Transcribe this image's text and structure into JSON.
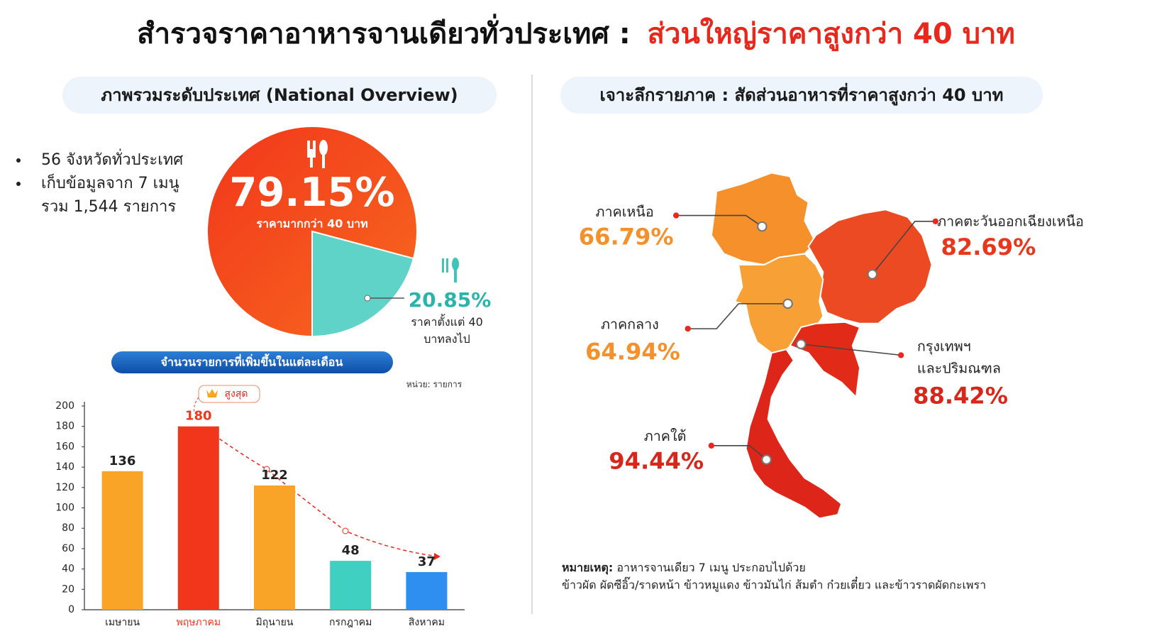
{
  "title": {
    "main": "สำรวจราคาอาหารจานเดียวทั่วประเทศ :",
    "highlight": "ส่วนใหญ่ราคาสูงกว่า 40 บาท"
  },
  "national": {
    "heading": "ภาพรวมระดับประเทศ (National Overview)",
    "bullets": [
      [
        "56 จังหวัดทั่วประเทศ"
      ],
      [
        "เก็บข้อมูลจาก 7 เมนู",
        "รวม 1,544 รายการ"
      ]
    ]
  },
  "chart_data": [
    {
      "type": "pie",
      "categories": [
        "ราคามากกว่า 40 บาท",
        "ราคาตั้งแต่ 40 บาทลงไป"
      ],
      "values": [
        79.15,
        20.85
      ],
      "value_labels": [
        "79.15%",
        "20.85%"
      ],
      "colors": [
        "#f23a1e",
        "#5fd3c8"
      ]
    },
    {
      "type": "bar",
      "title": "จำนวนรายการที่เพิ่มขึ้นในแต่ละเดือน",
      "unit_note": "หน่วย: รายการ",
      "badge": "สูงสุด",
      "categories": [
        "เมษายน",
        "พฤษภาคม",
        "มิถุนายน",
        "กรกฎาคม",
        "สิงหาคม"
      ],
      "values": [
        136,
        180,
        122,
        48,
        37
      ],
      "colors": [
        "#f9a327",
        "#f2361c",
        "#f9a327",
        "#3fd0c2",
        "#2f8ff0"
      ],
      "ylim": [
        0,
        200
      ],
      "yticks": [
        0,
        20,
        40,
        60,
        80,
        100,
        120,
        140,
        160,
        180,
        200
      ]
    }
  ],
  "regional": {
    "heading": "เจาะลึกรายภาค : สัดส่วนอาหารที่ราคาสูงกว่า 40 บาท",
    "regions": [
      {
        "name": [
          "ภาคเหนือ"
        ],
        "percent": "66.79%",
        "color": "#f5902a"
      },
      {
        "name": [
          "ภาคตะวันออกเฉียงเหนือ"
        ],
        "percent": "82.69%",
        "color": "#e8381c"
      },
      {
        "name": [
          "ภาคกลาง"
        ],
        "percent": "64.94%",
        "color": "#f5902a"
      },
      {
        "name": [
          "กรุงเทพฯ",
          "และปริมณฑล"
        ],
        "percent": "88.42%",
        "color": "#d9261a"
      },
      {
        "name": [
          "ภาคใต้"
        ],
        "percent": "94.44%",
        "color": "#d9261a"
      }
    ]
  },
  "note": {
    "label": "หมายเหตุ:",
    "line1": " อาหารจานเดียว 7 เมนู ประกอบไปด้วย",
    "line2": "ข้าวผัด ผัดซีอิ๊ว/ราดหน้า ข้าวหมูแดง ข้าวมันไก่  ส้มตำ ก๋วยเตี๋ยว และข้าวราดผัดกะเพรา"
  }
}
